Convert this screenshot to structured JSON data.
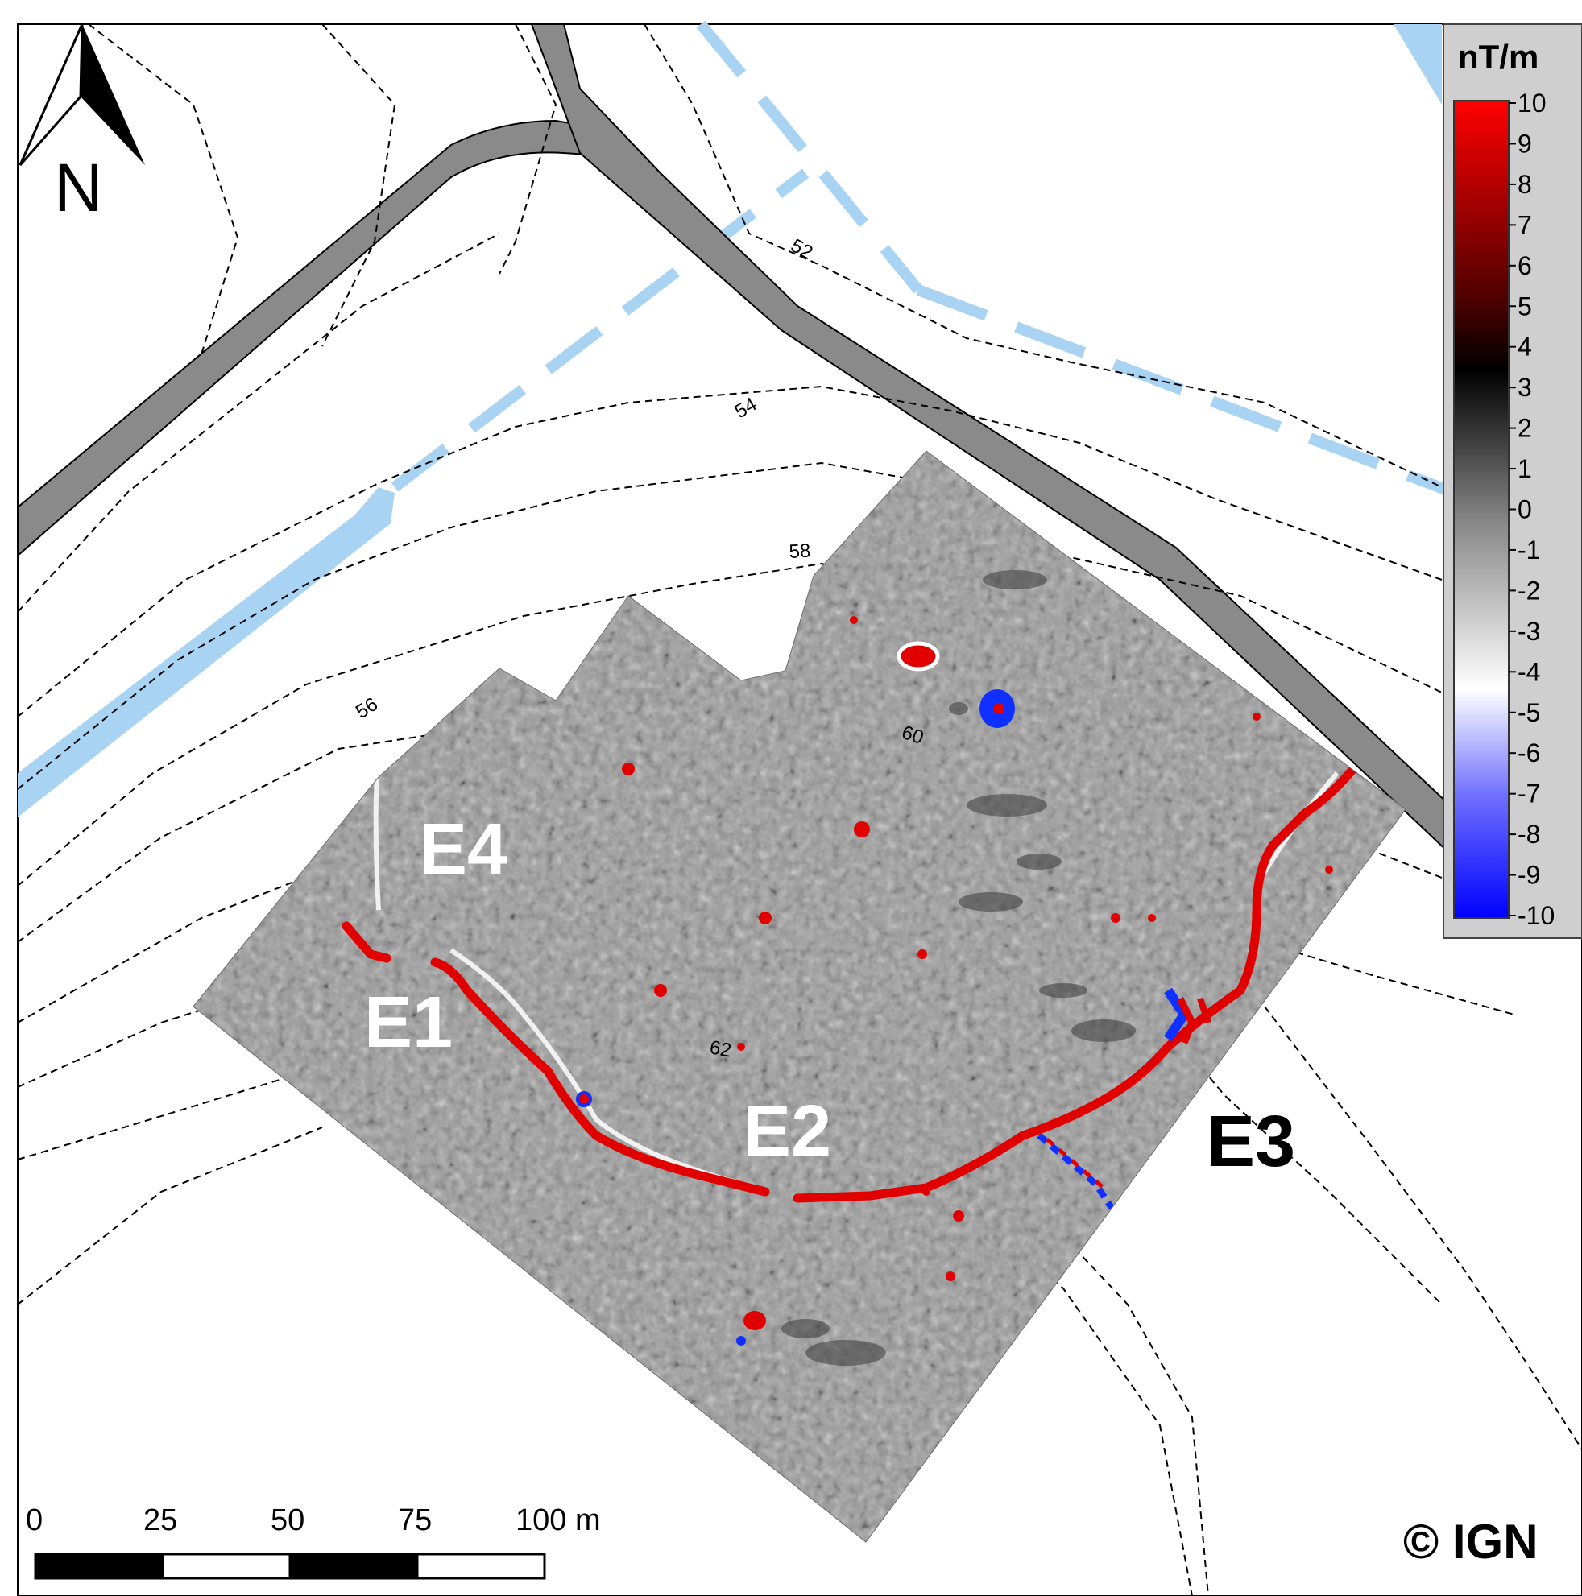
{
  "north_arrow": {
    "label": "N",
    "icon": "north-arrow-icon"
  },
  "contours": [
    {
      "label": "52"
    },
    {
      "label": "54"
    },
    {
      "label": "56"
    },
    {
      "label": "58"
    },
    {
      "label": "60"
    },
    {
      "label": "62"
    }
  ],
  "features": [
    {
      "label": "E4",
      "color": "#ffffff"
    },
    {
      "label": "E1",
      "color": "#ffffff"
    },
    {
      "label": "E2",
      "color": "#ffffff"
    },
    {
      "label": "E3",
      "color": "#000000"
    }
  ],
  "legend": {
    "unit": "nT/m",
    "ticks": [
      "10",
      "9",
      "8",
      "7",
      "6",
      "5",
      "4",
      "3",
      "2",
      "1",
      "0",
      "-1",
      "-2",
      "-3",
      "-4",
      "-5",
      "-6",
      "-7",
      "-8",
      "-9",
      "-10"
    ],
    "colors": {
      "high": "#ff0000",
      "mid": "#000000",
      "neutral": "#888888",
      "white": "#ffffff",
      "low": "#0000ff"
    }
  },
  "scale_bar": {
    "ticks": [
      "0",
      "25",
      "50",
      "75",
      "100 m"
    ]
  },
  "copyright": "© IGN",
  "colors": {
    "road": "#8a8a8a",
    "water": "#a9d3f3",
    "anomaly_positive": "#e00000",
    "anomaly_negative": "#1030ff",
    "survey_gray": "#9a9a9a"
  }
}
